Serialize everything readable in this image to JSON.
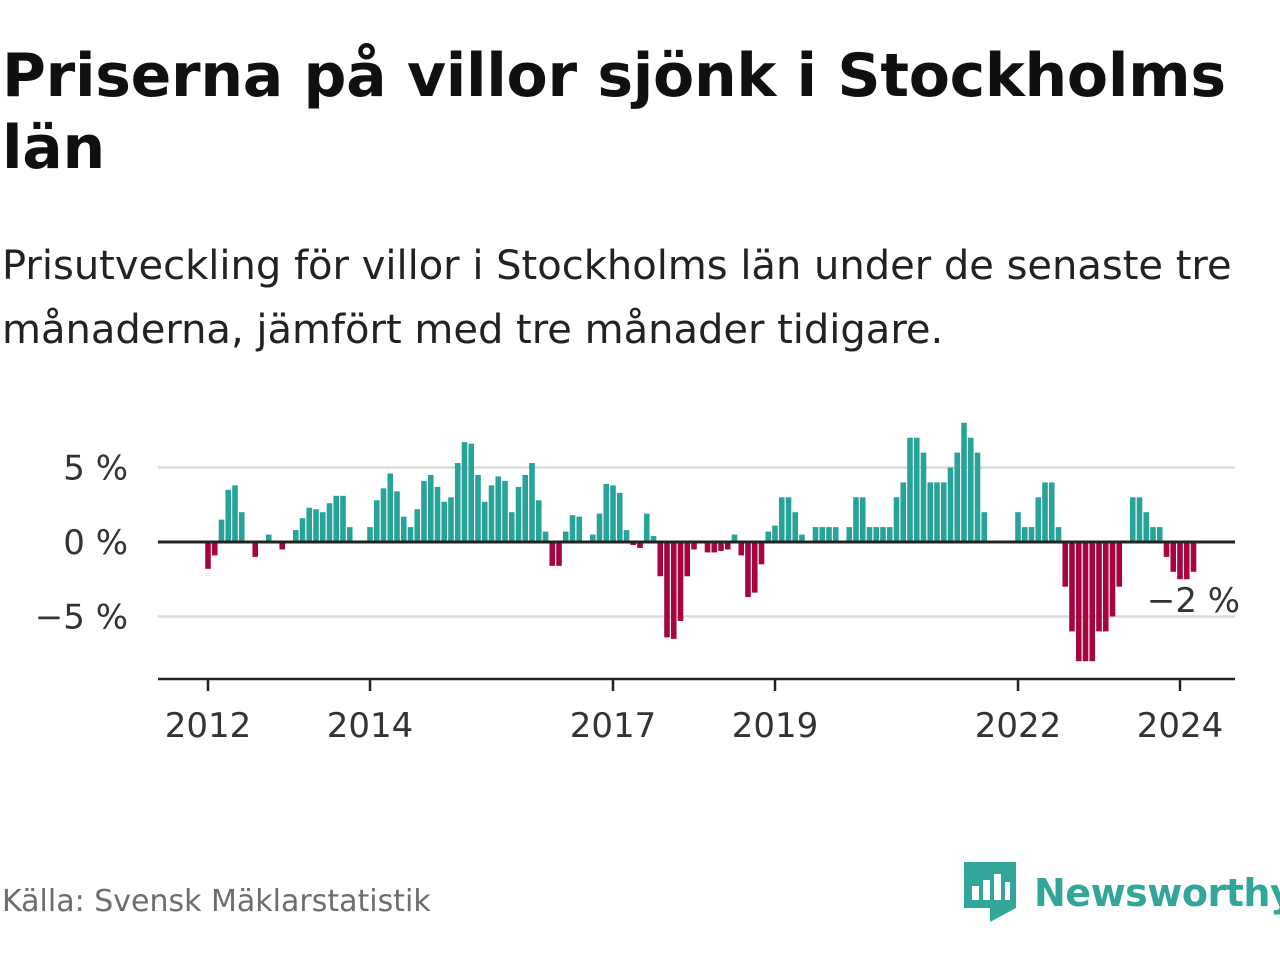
{
  "title": "Priserna på villor sjönk i Stockholms län",
  "subtitle": "Prisutveckling för villor i Stockholms län under de senaste tre månaderna, jämfört med tre månader tidigare.",
  "source": "Källa: Svensk Mäklarstatistik",
  "brand": "Newsworthy",
  "colors": {
    "positive": "#27a39a",
    "negative": "#a5063f",
    "grid": "#dcdcdc",
    "axis": "#222222",
    "brand": "#31a699"
  },
  "chart_data": {
    "type": "bar",
    "title": "",
    "xlabel": "",
    "ylabel": "",
    "ylim": [
      -9.2,
      7.5
    ],
    "grid": true,
    "yticks": [
      {
        "value": 5,
        "label": "5 %"
      },
      {
        "value": 0,
        "label": "0 %"
      },
      {
        "value": -5,
        "label": "−5 %"
      }
    ],
    "xticks": [
      "2012",
      "2014",
      "2017",
      "2019",
      "2022",
      "2024"
    ],
    "first_period": "2012-01",
    "last_value_label": "−2 %",
    "values": [
      -1.8,
      -0.9,
      1.5,
      3.5,
      3.8,
      2.0,
      null,
      -1.0,
      null,
      0.5,
      null,
      -0.5,
      null,
      0.8,
      1.6,
      2.3,
      2.2,
      2.0,
      2.6,
      3.1,
      3.1,
      1.0,
      null,
      null,
      1.0,
      2.8,
      3.6,
      4.6,
      3.4,
      1.7,
      1.0,
      2.2,
      4.1,
      4.5,
      3.7,
      2.7,
      3.0,
      5.3,
      6.7,
      6.6,
      4.5,
      2.7,
      3.8,
      4.4,
      4.1,
      2.0,
      3.7,
      4.5,
      5.3,
      2.8,
      0.7,
      -1.6,
      -1.6,
      0.7,
      1.8,
      1.7,
      null,
      0.5,
      1.9,
      3.9,
      3.8,
      3.3,
      0.8,
      -0.2,
      -0.4,
      1.9,
      0.4,
      -2.3,
      -6.4,
      -6.5,
      -5.3,
      -2.3,
      -0.5,
      null,
      -0.7,
      -0.7,
      -0.6,
      -0.5,
      0.5,
      -0.9,
      -3.7,
      -3.4,
      -1.5,
      0.7,
      1.1,
      3.0,
      3.0,
      2.0,
      0.5,
      null,
      1.0,
      1.0,
      1.0,
      1.0,
      null,
      1.0,
      3.0,
      3.0,
      1.0,
      1.0,
      1.0,
      1.0,
      3.0,
      4.0,
      7.0,
      7.0,
      6.0,
      4.0,
      4.0,
      4.0,
      5.0,
      6.0,
      8.0,
      7.0,
      6.0,
      2.0,
      null,
      null,
      null,
      null,
      2.0,
      1.0,
      1.0,
      3.0,
      4.0,
      4.0,
      1.0,
      -3.0,
      -6.0,
      -8.0,
      -8.0,
      -8.0,
      -6.0,
      -6.0,
      -5.0,
      -3.0,
      null,
      3.0,
      3.0,
      2.0,
      1.0,
      1.0,
      -1.0,
      -2.0,
      -2.5,
      -2.5,
      -2.0
    ]
  }
}
